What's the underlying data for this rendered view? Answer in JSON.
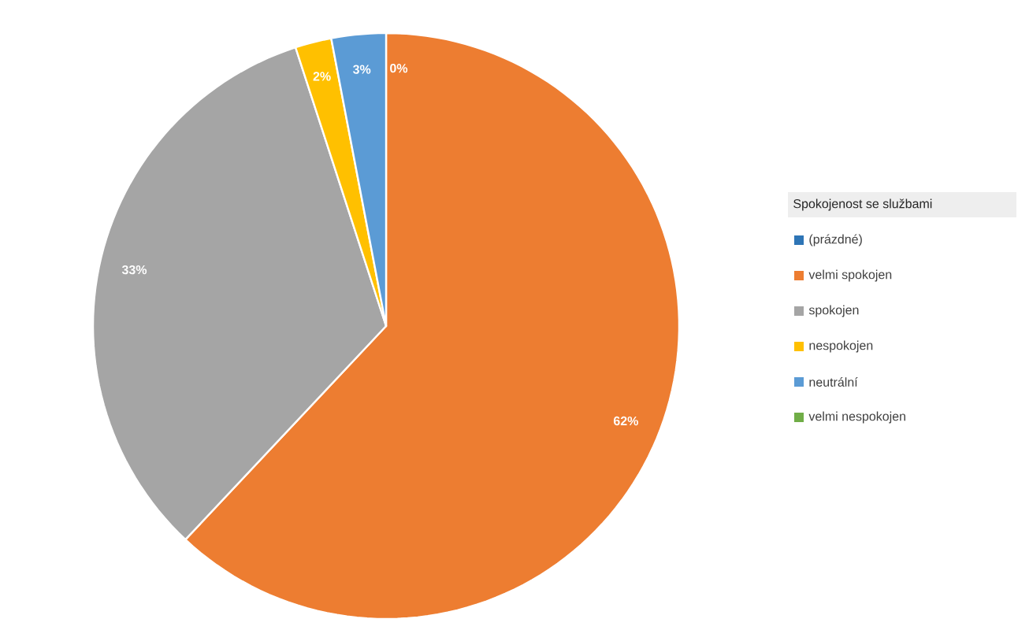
{
  "chart_data": {
    "type": "pie",
    "categories": [
      "(prázdné)",
      "velmi spokojen",
      "spokojen",
      "nespokojen",
      "neutrální",
      "velmi nespokojen"
    ],
    "values": [
      0,
      62,
      33,
      2,
      3,
      0
    ],
    "colors": [
      "#2e75b6",
      "#ed7d31",
      "#a5a5a5",
      "#ffc000",
      "#5b9bd5",
      "#70ad47"
    ],
    "value_labels": [
      "0%",
      "62%",
      "33%",
      "2%",
      "3%",
      null
    ],
    "legend": "right",
    "legend_title": "Spokojenost se službami"
  }
}
